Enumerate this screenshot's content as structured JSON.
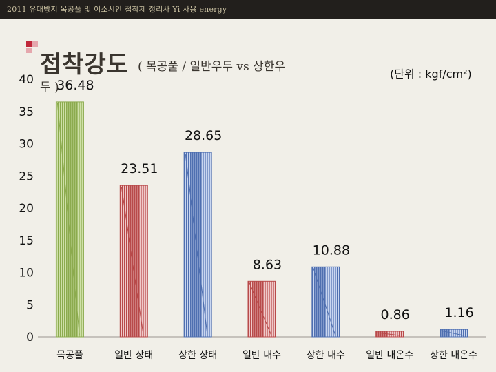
{
  "header": {
    "text": "2011 유대방지 목공풀 및 이소시안 접착제 정리사 Yi 사용 energy"
  },
  "slide": {
    "title": "접착강도",
    "subtitle": "( 목공풀 / 일반우두 vs 상한우",
    "subtitle_cont": "두 )",
    "unit": "(단위 : kgf/cm²)"
  },
  "colors": {
    "green": "#8cab4e",
    "red": "#b84a4a",
    "blue": "#4f6fb0"
  },
  "chart_data": {
    "type": "bar",
    "categories": [
      "목공풀",
      "일반 상태",
      "상한 상태",
      "일반 내수",
      "상한 내수",
      "일반 내온수",
      "상한 내온수"
    ],
    "values": [
      36.48,
      23.51,
      28.65,
      8.63,
      10.88,
      0.86,
      1.16
    ],
    "data_labels": [
      "36.48",
      "23.51",
      "28.65",
      "8.63",
      "10.88",
      "0.86",
      "1.16"
    ],
    "bar_colors": [
      "green",
      "red",
      "blue",
      "red",
      "blue",
      "red",
      "blue"
    ],
    "ylim": [
      0,
      40
    ],
    "yticks": [
      0,
      5,
      10,
      15,
      20,
      25,
      30,
      35,
      40
    ],
    "title": "접착강도",
    "xlabel": "",
    "ylabel": ""
  }
}
